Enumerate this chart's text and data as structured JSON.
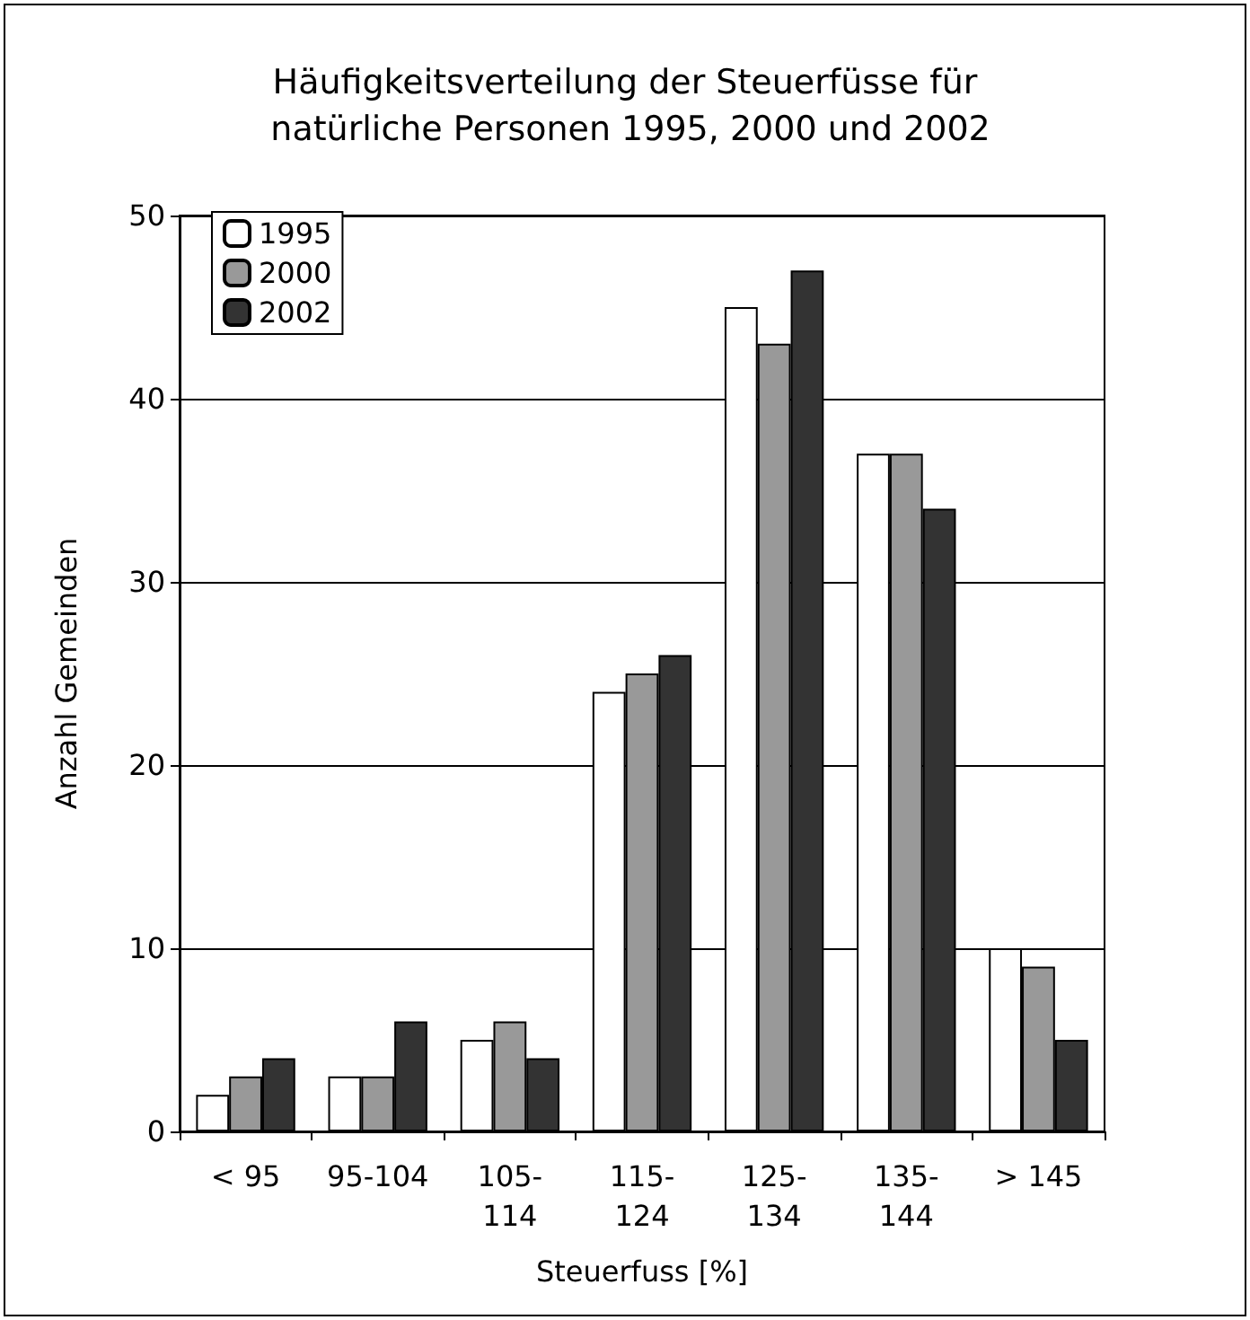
{
  "chart_data": {
    "type": "bar",
    "title": "Häufigkeitsverteilung der Steuerfüsse für natürliche Personen 1995, 2000 und 2002",
    "xlabel": "Steuerfuss [%]",
    "ylabel": "Anzahl Gemeinden",
    "categories": [
      "< 95",
      "95-104",
      "105-114",
      "115-124",
      "125-134",
      "135-144",
      "> 145"
    ],
    "series": [
      {
        "name": "1995",
        "color": "#ffffff",
        "values": [
          2,
          3,
          5,
          24,
          45,
          37,
          10
        ]
      },
      {
        "name": "2000",
        "color": "#999999",
        "values": [
          3,
          3,
          6,
          25,
          43,
          37,
          9
        ]
      },
      {
        "name": "2002",
        "color": "#333333",
        "values": [
          4,
          6,
          4,
          26,
          47,
          34,
          5
        ]
      }
    ],
    "ylim": [
      0,
      50
    ],
    "yticks": [
      0,
      10,
      20,
      30,
      40,
      50
    ],
    "grid": "y",
    "legend": "top left"
  }
}
